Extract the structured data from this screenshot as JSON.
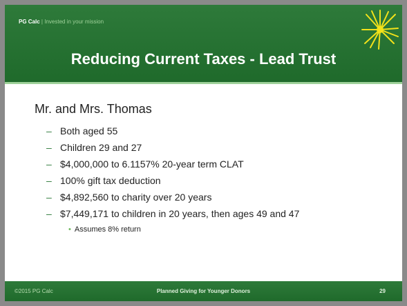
{
  "header": {
    "brand": "PG Calc",
    "separator": "|",
    "tagline": "Invested in your mission"
  },
  "title": "Reducing Current Taxes - Lead Trust",
  "body": {
    "heading": "Mr. and Mrs. Thomas",
    "items": [
      "Both aged 55",
      "Children 29 and 27",
      "$4,000,000 to 6.1157% 20-year term CLAT",
      "100% gift tax deduction",
      "$4,892,560 to charity over 20 years",
      "$7,449,171 to children in 20 years, then ages 49 and 47"
    ],
    "subitems": [
      "Assumes 8% return"
    ]
  },
  "footer": {
    "left": "©2015 PG Calc",
    "center": "Planned Giving for Younger Donors",
    "page": "29"
  }
}
